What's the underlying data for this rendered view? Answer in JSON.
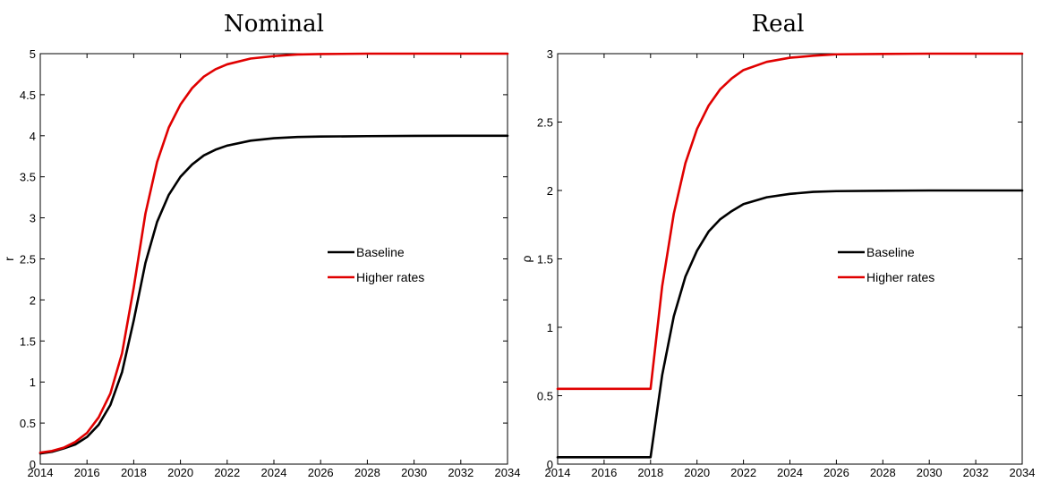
{
  "chart_data": [
    {
      "type": "line",
      "title": "Nominal",
      "xlabel": "",
      "ylabel": "r",
      "xlim": [
        2014,
        2034
      ],
      "ylim": [
        0,
        5
      ],
      "xticks": [
        2014,
        2016,
        2018,
        2020,
        2022,
        2024,
        2026,
        2028,
        2030,
        2032,
        2034
      ],
      "yticks": [
        0,
        0.5,
        1,
        1.5,
        2,
        2.5,
        3,
        3.5,
        4,
        4.5,
        5
      ],
      "xtick_labels": [
        "2014",
        "2016",
        "2018",
        "2020",
        "2022",
        "2024",
        "2026",
        "2028",
        "2030",
        "2032",
        "2034"
      ],
      "ytick_labels": [
        "0",
        "0.5",
        "1",
        "1.5",
        "2",
        "2.5",
        "3",
        "3.5",
        "4",
        "4.5",
        "5"
      ],
      "grid": false,
      "legend": {
        "placement": "center-right"
      },
      "series": [
        {
          "name": "Baseline",
          "color": "#000000",
          "x": [
            2014,
            2014.5,
            2015,
            2015.5,
            2016,
            2016.5,
            2017,
            2017.5,
            2018,
            2018.5,
            2019,
            2019.5,
            2020,
            2020.5,
            2021,
            2021.5,
            2022,
            2023,
            2024,
            2025,
            2026,
            2028,
            2030,
            2032,
            2034
          ],
          "y": [
            0.13,
            0.15,
            0.19,
            0.24,
            0.33,
            0.48,
            0.72,
            1.12,
            1.75,
            2.45,
            2.95,
            3.28,
            3.5,
            3.65,
            3.76,
            3.83,
            3.88,
            3.94,
            3.97,
            3.985,
            3.99,
            3.995,
            3.998,
            4.0,
            4.0
          ]
        },
        {
          "name": "Higher rates",
          "color": "#e00000",
          "x": [
            2014,
            2014.5,
            2015,
            2015.5,
            2016,
            2016.5,
            2017,
            2017.5,
            2018,
            2018.5,
            2019,
            2019.5,
            2020,
            2020.5,
            2021,
            2021.5,
            2022,
            2023,
            2024,
            2025,
            2026,
            2028,
            2030,
            2032,
            2034
          ],
          "y": [
            0.14,
            0.16,
            0.2,
            0.27,
            0.38,
            0.57,
            0.86,
            1.35,
            2.15,
            3.05,
            3.68,
            4.1,
            4.38,
            4.58,
            4.72,
            4.81,
            4.87,
            4.94,
            4.97,
            4.99,
            4.995,
            5.0,
            5.0,
            5.0,
            5.0
          ]
        }
      ]
    },
    {
      "type": "line",
      "title": "Real",
      "xlabel": "",
      "ylabel": "ρ",
      "xlim": [
        2014,
        2034
      ],
      "ylim": [
        0,
        3
      ],
      "xticks": [
        2014,
        2016,
        2018,
        2020,
        2022,
        2024,
        2026,
        2028,
        2030,
        2032,
        2034
      ],
      "yticks": [
        0,
        0.5,
        1,
        1.5,
        2,
        2.5,
        3
      ],
      "xtick_labels": [
        "2014",
        "2016",
        "2018",
        "2020",
        "2022",
        "2024",
        "2026",
        "2028",
        "2030",
        "2032",
        "2034"
      ],
      "ytick_labels": [
        "0",
        "0.5",
        "1",
        "1.5",
        "2",
        "2.5",
        "3"
      ],
      "grid": false,
      "legend": {
        "placement": "center-right"
      },
      "series": [
        {
          "name": "Baseline",
          "color": "#000000",
          "x": [
            2014,
            2016,
            2018,
            2018.5,
            2019,
            2019.5,
            2020,
            2020.5,
            2021,
            2021.5,
            2022,
            2023,
            2024,
            2025,
            2026,
            2028,
            2030,
            2032,
            2034
          ],
          "y": [
            0.05,
            0.05,
            0.05,
            0.65,
            1.08,
            1.37,
            1.56,
            1.7,
            1.79,
            1.85,
            1.9,
            1.95,
            1.975,
            1.99,
            1.995,
            1.998,
            2.0,
            2.0,
            2.0
          ]
        },
        {
          "name": "Higher rates",
          "color": "#e00000",
          "x": [
            2014,
            2016,
            2018,
            2018.5,
            2019,
            2019.5,
            2020,
            2020.5,
            2021,
            2021.5,
            2022,
            2023,
            2024,
            2025,
            2026,
            2028,
            2030,
            2032,
            2034
          ],
          "y": [
            0.55,
            0.55,
            0.55,
            1.3,
            1.83,
            2.2,
            2.45,
            2.62,
            2.74,
            2.82,
            2.88,
            2.94,
            2.97,
            2.985,
            2.995,
            2.998,
            3.0,
            3.0,
            3.0
          ]
        }
      ]
    }
  ]
}
